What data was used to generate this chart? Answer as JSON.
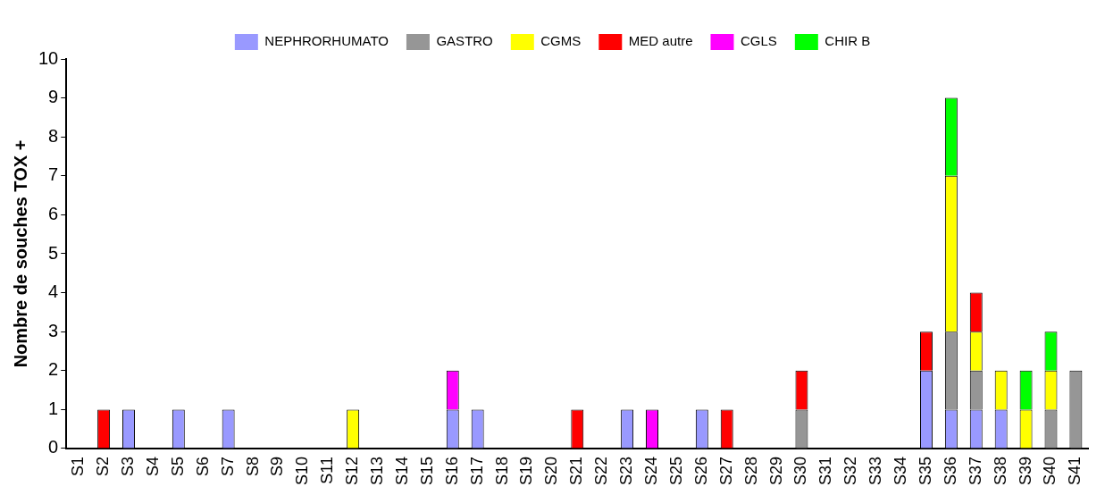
{
  "chart_data": {
    "type": "bar",
    "stacked": true,
    "ylabel": "Nombre de souches TOX +",
    "categories": [
      "S1",
      "S2",
      "S3",
      "S4",
      "S5",
      "S6",
      "S7",
      "S8",
      "S9",
      "S10",
      "S11",
      "S12",
      "S13",
      "S14",
      "S15",
      "S16",
      "S17",
      "S18",
      "S19",
      "S20",
      "S21",
      "S22",
      "S23",
      "S24",
      "S25",
      "S26",
      "S27",
      "S28",
      "S29",
      "S30",
      "S31",
      "S32",
      "S33",
      "S34",
      "S35",
      "S36",
      "S37",
      "S38",
      "S39",
      "S40",
      "S41"
    ],
    "series": [
      {
        "name": "NEPHRORHUMATO",
        "color": "#9999ff",
        "values": [
          0,
          0,
          1,
          0,
          1,
          0,
          1,
          0,
          0,
          0,
          0,
          0,
          0,
          0,
          0,
          1,
          1,
          0,
          0,
          0,
          0,
          0,
          1,
          0,
          0,
          1,
          0,
          0,
          0,
          0,
          0,
          0,
          0,
          0,
          2,
          1,
          1,
          1,
          0,
          0,
          0
        ]
      },
      {
        "name": "GASTRO",
        "color": "#969696",
        "values": [
          0,
          0,
          0,
          0,
          0,
          0,
          0,
          0,
          0,
          0,
          0,
          0,
          0,
          0,
          0,
          0,
          0,
          0,
          0,
          0,
          0,
          0,
          0,
          0,
          0,
          0,
          0,
          0,
          0,
          1,
          0,
          0,
          0,
          0,
          0,
          2,
          1,
          0,
          0,
          1,
          2
        ]
      },
      {
        "name": "CGMS",
        "color": "#ffff00",
        "values": [
          0,
          0,
          0,
          0,
          0,
          0,
          0,
          0,
          0,
          0,
          0,
          1,
          0,
          0,
          0,
          0,
          0,
          0,
          0,
          0,
          0,
          0,
          0,
          0,
          0,
          0,
          0,
          0,
          0,
          0,
          0,
          0,
          0,
          0,
          0,
          4,
          1,
          1,
          1,
          1,
          0
        ]
      },
      {
        "name": "MED autre",
        "color": "#ff0000",
        "values": [
          0,
          1,
          0,
          0,
          0,
          0,
          0,
          0,
          0,
          0,
          0,
          0,
          0,
          0,
          0,
          0,
          0,
          0,
          0,
          0,
          1,
          0,
          0,
          0,
          0,
          0,
          1,
          0,
          0,
          1,
          0,
          0,
          0,
          0,
          1,
          0,
          1,
          0,
          0,
          0,
          0
        ]
      },
      {
        "name": "CGLS",
        "color": "#ff00ff",
        "values": [
          0,
          0,
          0,
          0,
          0,
          0,
          0,
          0,
          0,
          0,
          0,
          0,
          0,
          0,
          0,
          1,
          0,
          0,
          0,
          0,
          0,
          0,
          0,
          1,
          0,
          0,
          0,
          0,
          0,
          0,
          0,
          0,
          0,
          0,
          0,
          0,
          0,
          0,
          0,
          0,
          0
        ]
      },
      {
        "name": "CHIR B",
        "color": "#00ff00",
        "values": [
          0,
          0,
          0,
          0,
          0,
          0,
          0,
          0,
          0,
          0,
          0,
          0,
          0,
          0,
          0,
          0,
          0,
          0,
          0,
          0,
          0,
          0,
          0,
          0,
          0,
          0,
          0,
          0,
          0,
          0,
          0,
          0,
          0,
          0,
          0,
          2,
          0,
          0,
          1,
          1,
          0
        ]
      }
    ],
    "ylim": [
      0,
      10
    ],
    "yticks": [
      0,
      1,
      2,
      3,
      4,
      5,
      6,
      7,
      8,
      9,
      10
    ],
    "grid": false,
    "legend": "top"
  }
}
